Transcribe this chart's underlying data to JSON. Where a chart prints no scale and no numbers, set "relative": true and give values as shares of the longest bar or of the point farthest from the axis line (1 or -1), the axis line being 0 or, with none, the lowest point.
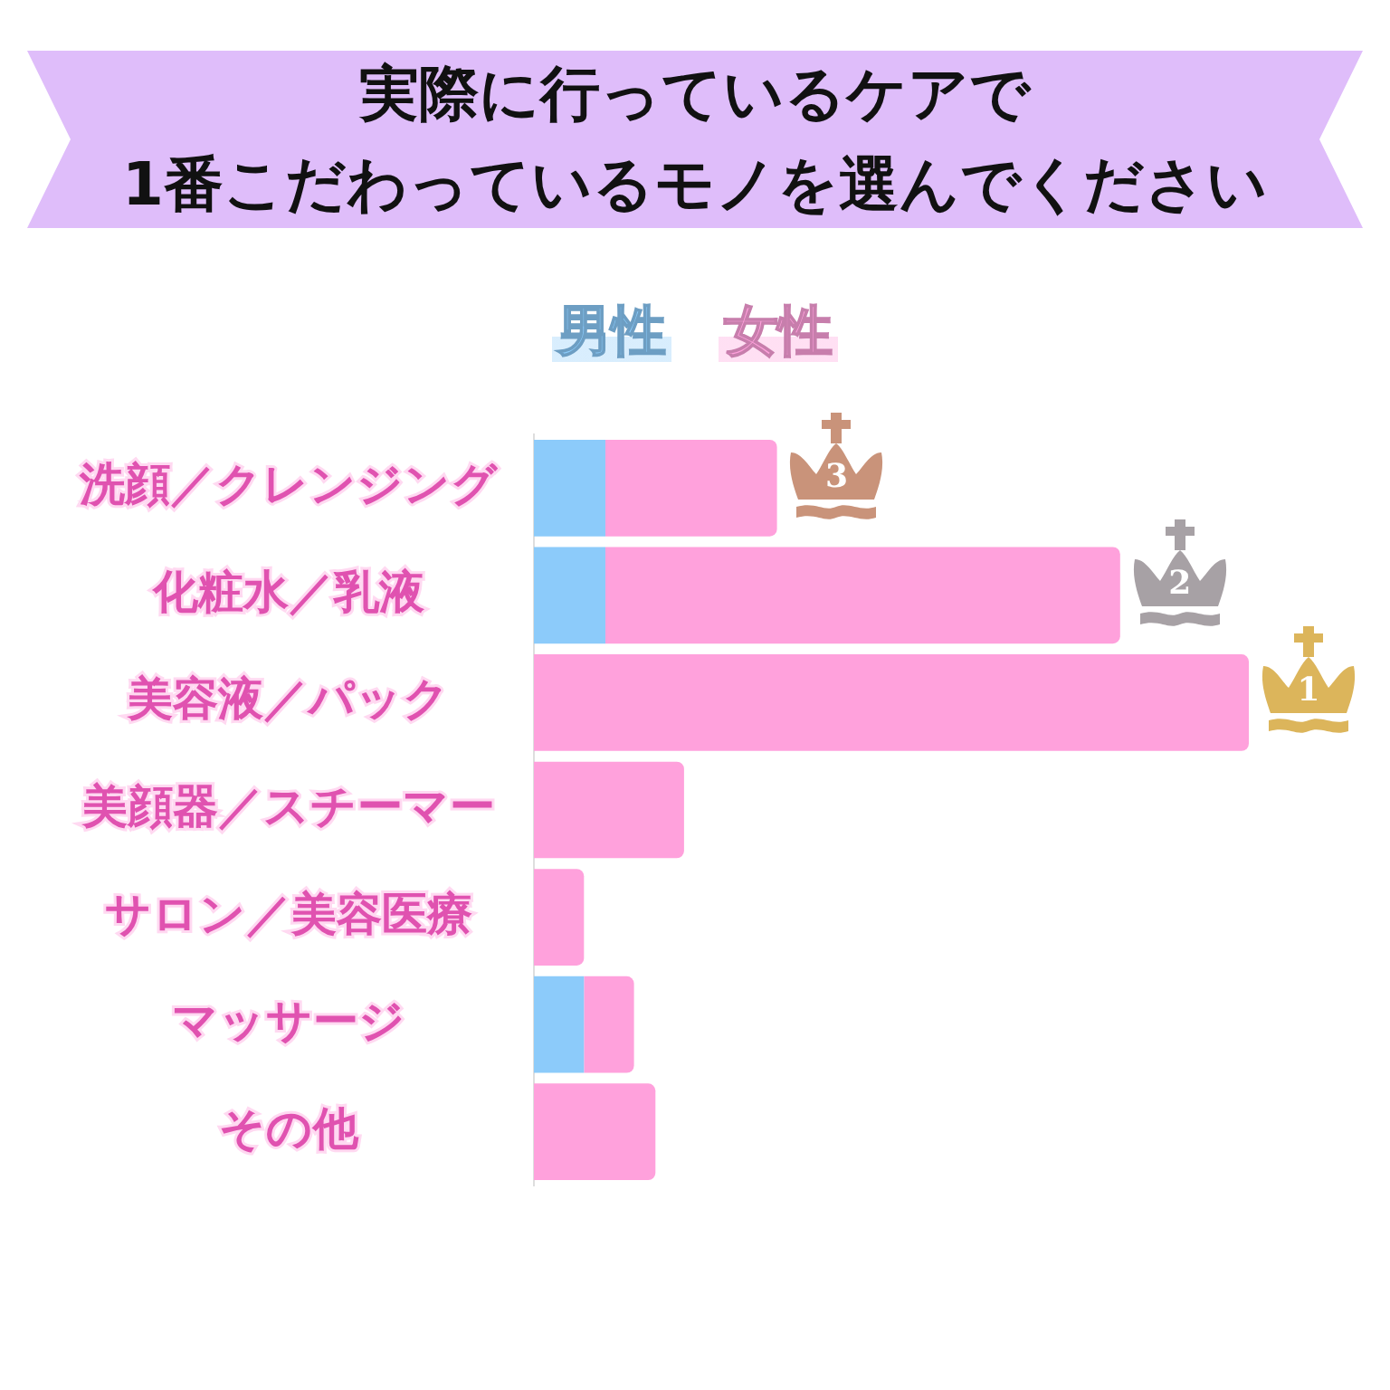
{
  "chart_data": {
    "type": "bar",
    "orientation": "horizontal",
    "stacked": true,
    "relative": true,
    "title": "実際に行っているケアで\n1番こだわっているモノを選んでください",
    "categories": [
      "洗顔／クレンジング",
      "化粧水／乳液",
      "美容液／パック",
      "美顔器／スチーマー",
      "サロン／美容医療",
      "マッサージ",
      "その他"
    ],
    "series": [
      {
        "name": "男性",
        "color": "#8ccbfa",
        "values": [
          0.1,
          0.1,
          0,
          0,
          0,
          0.07,
          0
        ]
      },
      {
        "name": "女性",
        "color": "#ffa1dc",
        "values": [
          0.24,
          0.72,
          1,
          0.21,
          0.07,
          0.07,
          0.17
        ]
      }
    ],
    "annotations": [
      {
        "text": "1",
        "x": 1,
        "y": "美容液／パック"
      },
      {
        "text": "2",
        "x": 0.82,
        "y": "化粧水／乳液"
      },
      {
        "text": "3",
        "x": 0.34,
        "y": "洗顔／クレンジング"
      }
    ],
    "legend": "top"
  }
}
